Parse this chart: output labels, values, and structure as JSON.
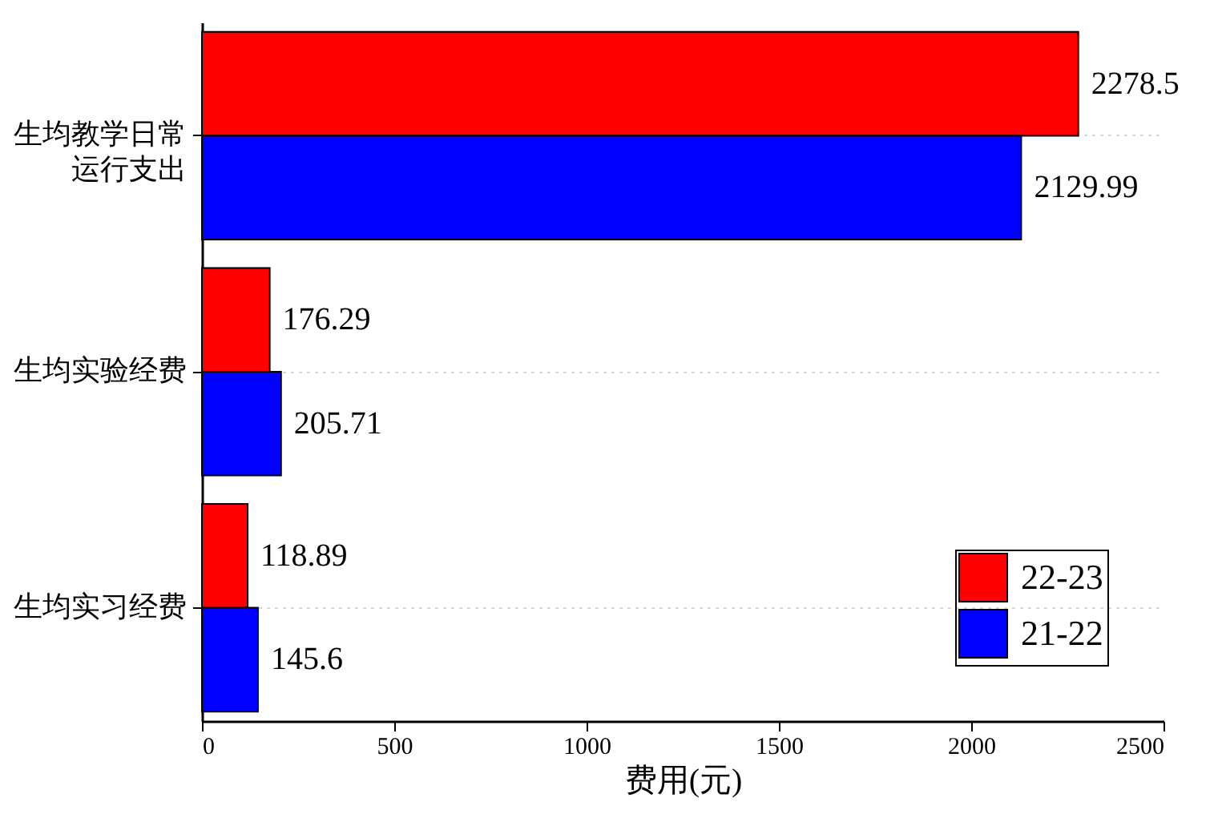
{
  "chart_data": {
    "type": "bar",
    "orientation": "horizontal",
    "xlabel": "费用(元)",
    "categories": [
      "生均教学日常运行支出",
      "生均实验经费",
      "生均实习经费"
    ],
    "series": [
      {
        "name": "22-23",
        "color": "#ff0000",
        "values": [
          2278.5,
          176.29,
          118.89
        ]
      },
      {
        "name": "21-22",
        "color": "#0000ff",
        "values": [
          2129.99,
          205.71,
          145.6
        ]
      }
    ],
    "xlim": [
      0,
      2500
    ],
    "xticks": [
      0,
      500,
      1000,
      1500,
      2000,
      2500
    ],
    "data_labels": true,
    "legend": "bottom right",
    "grid": "y"
  }
}
